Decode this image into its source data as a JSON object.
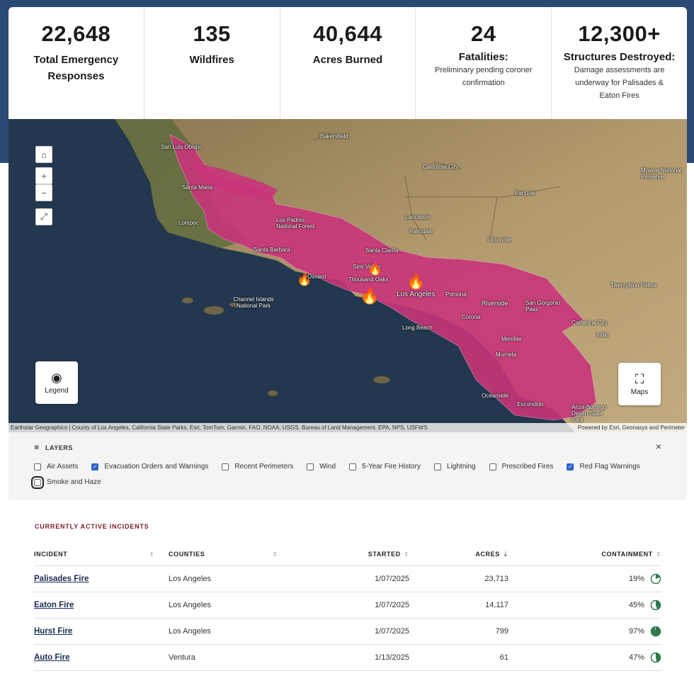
{
  "stats": [
    {
      "value": "22,648",
      "label": "Total Emergency Responses",
      "note": ""
    },
    {
      "value": "135",
      "label": "Wildfires",
      "note": ""
    },
    {
      "value": "40,644",
      "label": "Acres Burned",
      "note": ""
    },
    {
      "value": "24",
      "label": "Fatalities:",
      "note": "Preliminary pending coroner confirmation"
    },
    {
      "value": "12,300+",
      "label": "Structures Destroyed:",
      "note": "Damage assessments are underway for Palisades & Eaton Fires"
    }
  ],
  "map": {
    "cities": [
      "San Luis Obispo",
      "Santa Maria",
      "Lompoc",
      "Los Padres National Forest",
      "Bakersfield",
      "California City",
      "Barstow",
      "Lancaster",
      "Palmdale",
      "Victorville",
      "Santa Barbara",
      "Santa Clarita",
      "Simi Valley",
      "Oxnard",
      "Thousand Oaks",
      "Los Angeles",
      "Pomona",
      "Channel Islands National Park",
      "Long Beach",
      "Riverside",
      "Corona",
      "San Gorgonio Pass",
      "Menifee",
      "Murrieta",
      "Oceanside",
      "Escondido",
      "Anza-Borrego Desert State Park",
      "Cathedral City",
      "Indio",
      "Twentynine Palms",
      "Mojave National Preserve"
    ],
    "legend_label": "Legend",
    "maps_label": "Maps",
    "home_icon": "home-icon",
    "zoom_in": "+",
    "zoom_out": "−",
    "attribution_left": "Earthstar Geographics | County of Los Angeles, California State Parks, Esri, TomTom, Garmin, FAO, NOAA, USGS, Bureau of Land Management, EPA, NPS, USFWS",
    "attribution_right": "Powered by Esri, Geonasys and Perimeter",
    "colors": {
      "warning": "#c8357a",
      "ocean": "#23384e",
      "land": "#a98c62"
    }
  },
  "layers": {
    "title": "LAYERS",
    "close": "×",
    "items": [
      {
        "label": "Air Assets",
        "checked": false
      },
      {
        "label": "Evacuation Orders and Warnings",
        "checked": true
      },
      {
        "label": "Recent Perimeters",
        "checked": false
      },
      {
        "label": "Wind",
        "checked": false
      },
      {
        "label": "5-Year Fire History",
        "checked": false
      },
      {
        "label": "Lightning",
        "checked": false
      },
      {
        "label": "Prescribed Fires",
        "checked": false
      },
      {
        "label": "Red Flag Warnings",
        "checked": true
      },
      {
        "label": "Smoke and Haze",
        "checked": false
      }
    ]
  },
  "incidents": {
    "title": "CURRENTLY ACTIVE INCIDENTS",
    "headers": {
      "incident": "INCIDENT",
      "counties": "COUNTIES",
      "started": "STARTED",
      "acres": "ACRES",
      "containment": "CONTAINMENT"
    },
    "rows": [
      {
        "name": "Palisades Fire",
        "county": "Los Angeles",
        "started": "1/07/2025",
        "acres": "23,713",
        "containment": "19%",
        "pct": 19
      },
      {
        "name": "Eaton Fire",
        "county": "Los Angeles",
        "started": "1/07/2025",
        "acres": "14,117",
        "containment": "45%",
        "pct": 45
      },
      {
        "name": "Hurst Fire",
        "county": "Los Angeles",
        "started": "1/07/2025",
        "acres": "799",
        "containment": "97%",
        "pct": 97
      },
      {
        "name": "Auto Fire",
        "county": "Ventura",
        "started": "1/13/2025",
        "acres": "61",
        "containment": "47%",
        "pct": 47
      }
    ],
    "pie_color": "#2f7a4f"
  }
}
